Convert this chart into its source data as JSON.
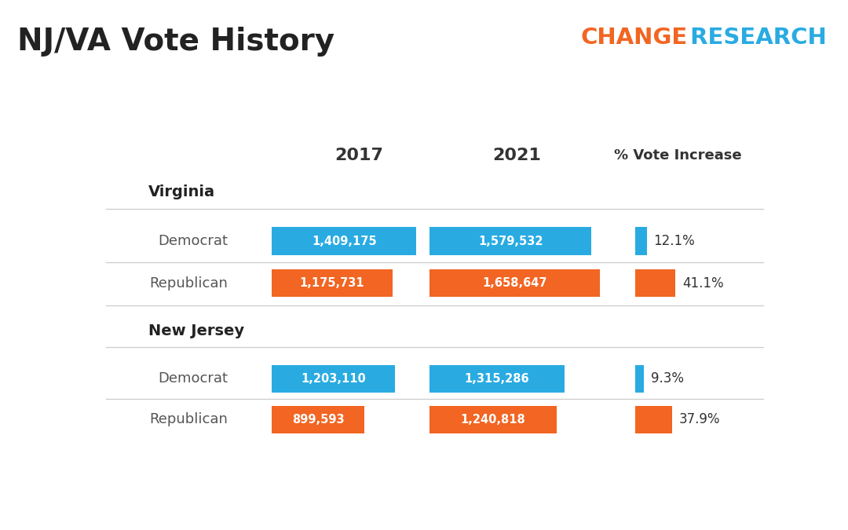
{
  "title_left": "NJ/VA Vote History",
  "brand_change": "CHANGE",
  "brand_research": " RESEARCH",
  "brand_change_color": "#F26522",
  "brand_research_color": "#29ABE2",
  "bg_color": "#FFFFFF",
  "header_year1": "2017",
  "header_year2": "2021",
  "header_pct": "% Vote Increase",
  "dem_color": "#29ABE2",
  "rep_color": "#F26522",
  "sections": [
    {
      "state": "Virginia",
      "rows": [
        {
          "party": "Democrat",
          "val2017": 1409175,
          "val2017_label": "1,409,175",
          "val2021": 1579532,
          "val2021_label": "1,579,532",
          "pct_increase": 12.1,
          "pct_label": "12.1%",
          "color": "#29ABE2"
        },
        {
          "party": "Republican",
          "val2017": 1175731,
          "val2017_label": "1,175,731",
          "val2021": 1658647,
          "val2021_label": "1,658,647",
          "pct_increase": 41.1,
          "pct_label": "41.1%",
          "color": "#F26522"
        }
      ]
    },
    {
      "state": "New Jersey",
      "rows": [
        {
          "party": "Democrat",
          "val2017": 1203110,
          "val2017_label": "1,203,110",
          "val2021": 1315286,
          "val2021_label": "1,315,286",
          "pct_increase": 9.3,
          "pct_label": "9.3%",
          "color": "#29ABE2"
        },
        {
          "party": "Republican",
          "val2017": 899593,
          "val2017_label": "899,593",
          "val2021": 1240818,
          "val2021_label": "1,240,818",
          "pct_increase": 37.9,
          "pct_label": "37.9%",
          "color": "#F26522"
        }
      ]
    }
  ]
}
